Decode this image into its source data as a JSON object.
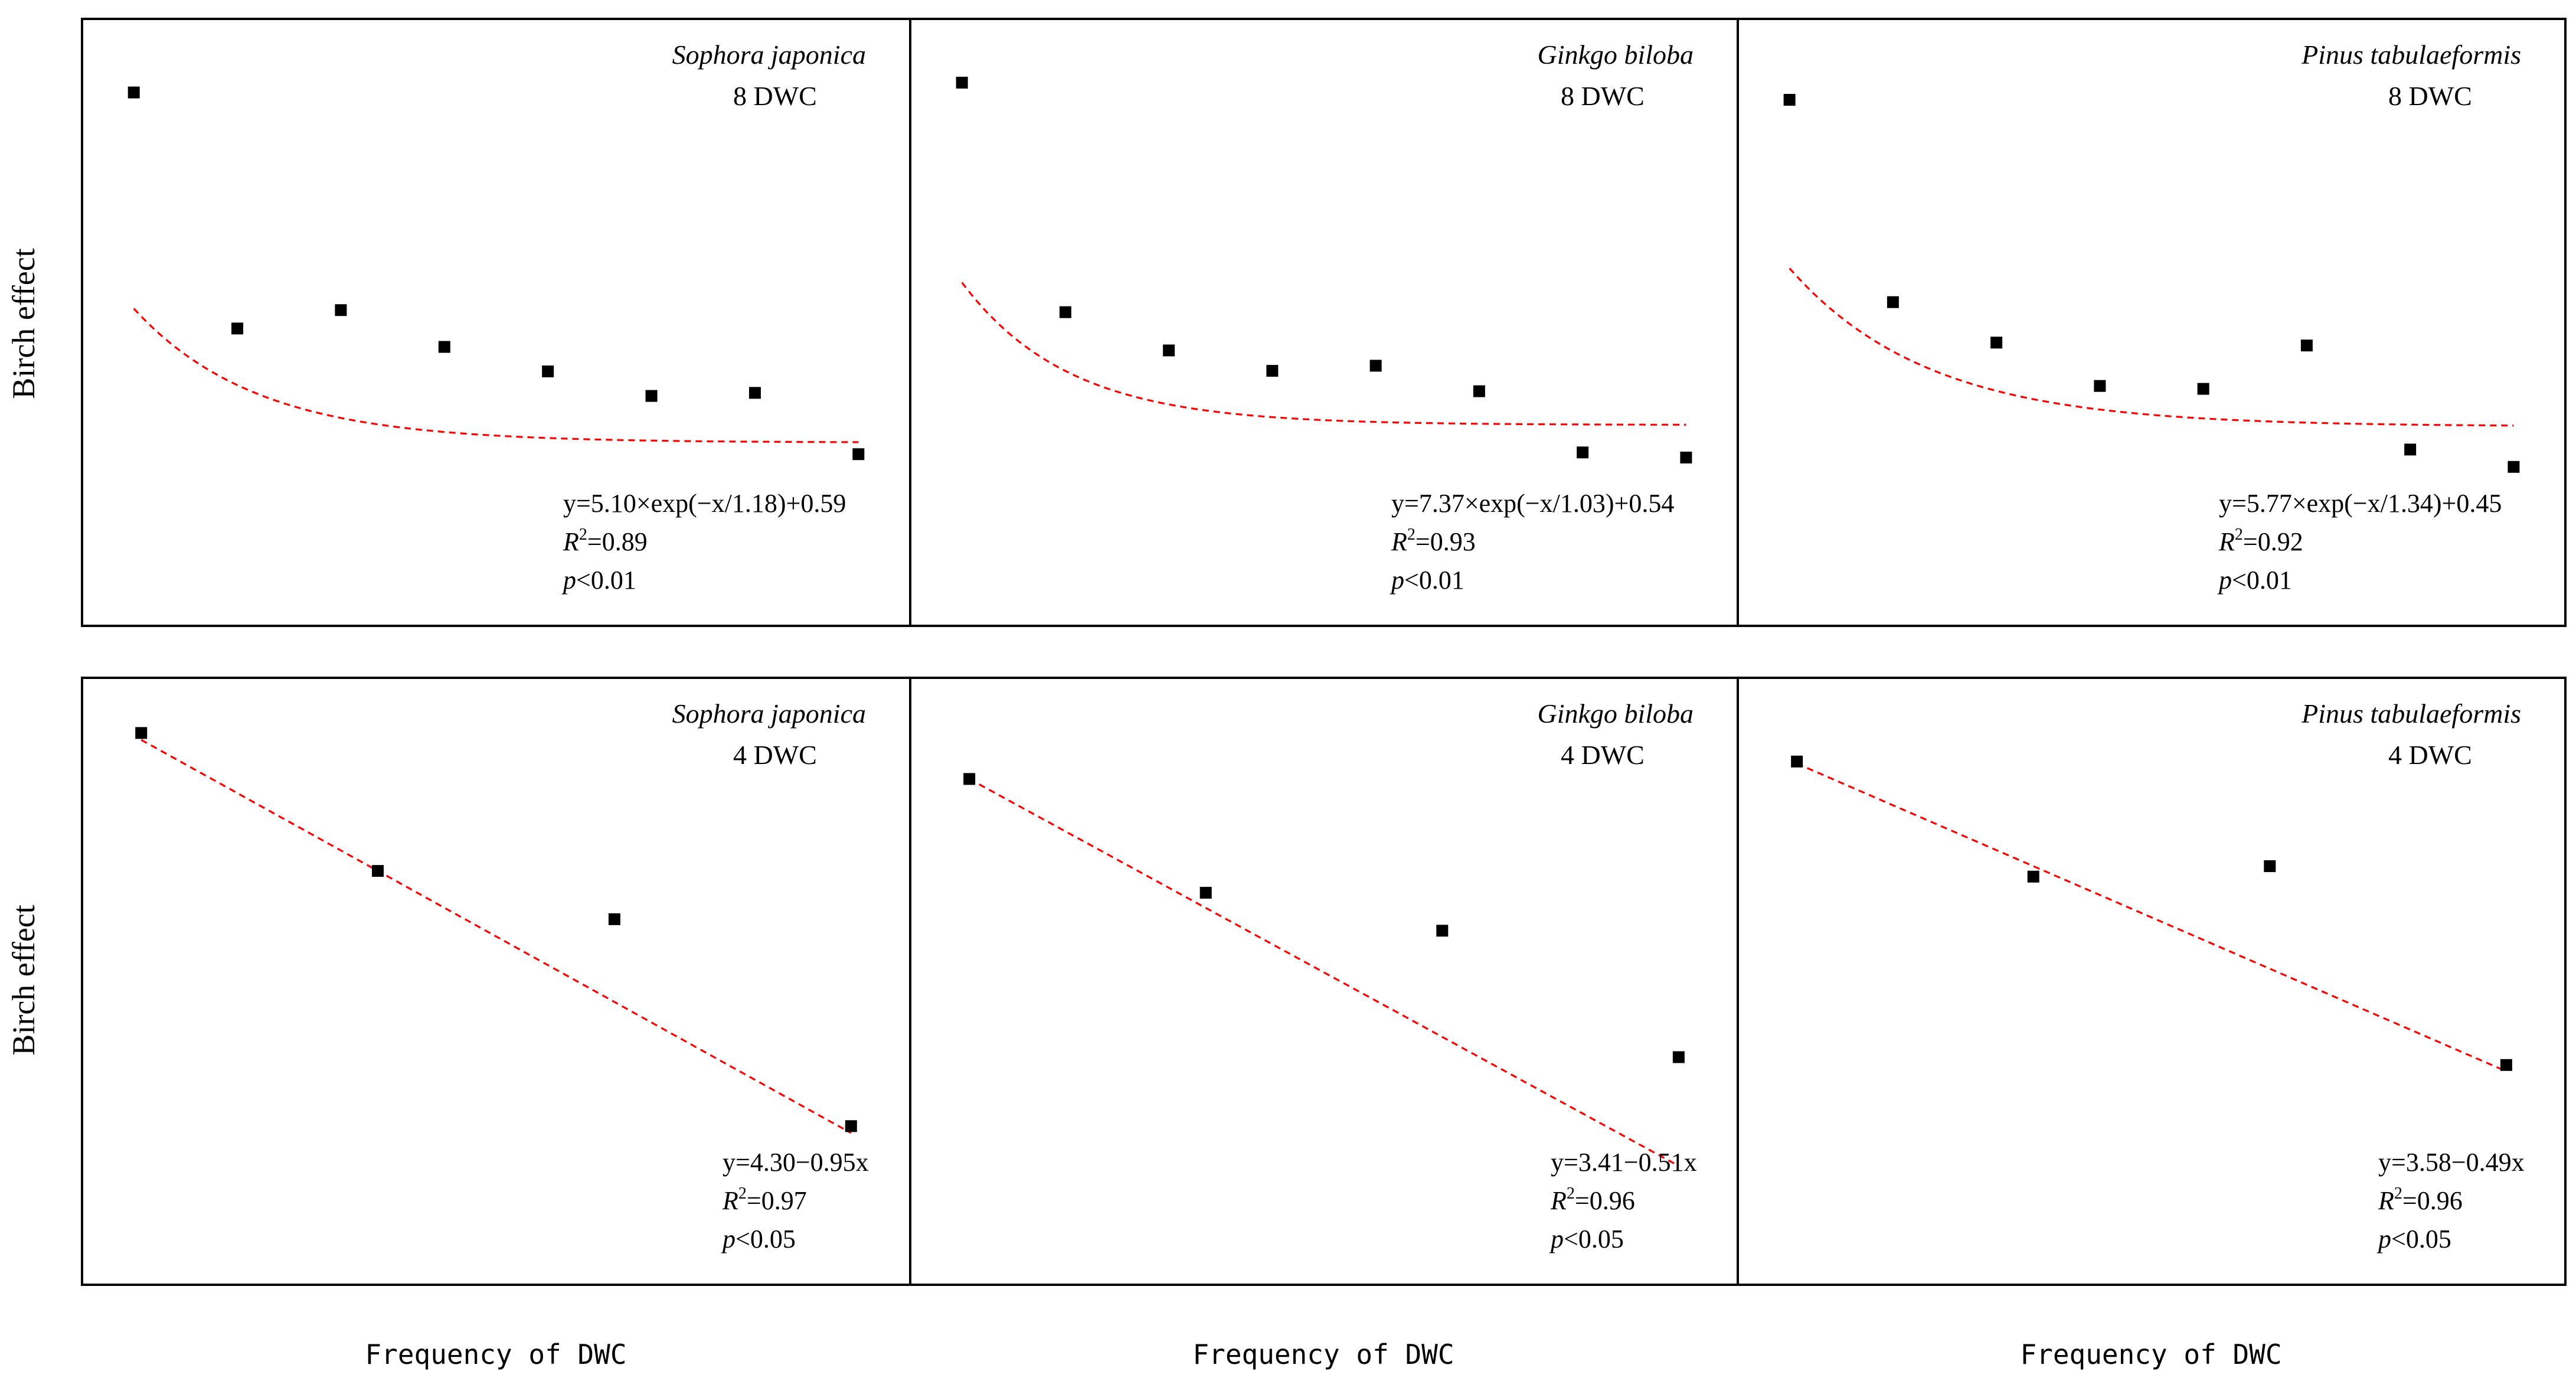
{
  "figure": {
    "ylabel": "Birch effect",
    "xlabel": "Frequency of DWC"
  },
  "colors": {
    "points": "#000000",
    "fit": "#ff0000",
    "frame": "#000000",
    "background": "#ffffff"
  },
  "chart_data": [
    {
      "id": "top-1",
      "type": "scatter",
      "species": "Sophora japonica",
      "treatment": "8 DWC",
      "x": [
        1,
        2,
        3,
        4,
        5,
        6,
        7,
        8
      ],
      "y": [
        6.3,
        2.45,
        2.75,
        2.15,
        1.75,
        1.35,
        1.4,
        0.4
      ],
      "fit": {
        "kind": "exp",
        "A": 5.1,
        "tau": 1.18,
        "c": 0.59
      },
      "equation": "y=5.10×exp(−x/1.18)+0.59",
      "r2_label": "R",
      "r2_sup": "2",
      "r2_value": "=0.89",
      "p_label": "p",
      "p_value": "<0.01",
      "xlim": [
        0.5,
        8.5
      ],
      "ylim": [
        -2.4,
        7.5
      ]
    },
    {
      "id": "top-2",
      "type": "scatter",
      "species": "Ginkgo biloba",
      "treatment": "8 DWC",
      "x": [
        1,
        2,
        3,
        4,
        5,
        6,
        7,
        8
      ],
      "y": [
        7.25,
        2.75,
        2.0,
        1.6,
        1.7,
        1.2,
        0.0,
        -0.1
      ],
      "fit": {
        "kind": "exp",
        "A": 7.37,
        "tau": 1.03,
        "c": 0.54
      },
      "equation": "y=7.37×exp(−x/1.03)+0.54",
      "r2_label": "R",
      "r2_sup": "2",
      "r2_value": "=0.93",
      "p_label": "p",
      "p_value": "<0.01",
      "xlim": [
        0.5,
        8.5
      ],
      "ylim": [
        -3.4,
        8.5
      ]
    },
    {
      "id": "top-3",
      "type": "scatter",
      "species": "Pinus tabulaeformis",
      "treatment": "8 DWC",
      "x": [
        1,
        2,
        3,
        4,
        5,
        6,
        7,
        8
      ],
      "y": [
        6.1,
        2.6,
        1.9,
        1.15,
        1.1,
        1.85,
        0.05,
        -0.25
      ],
      "fit": {
        "kind": "exp",
        "A": 5.77,
        "tau": 1.34,
        "c": 0.45
      },
      "equation": "y=5.77×exp(−x/1.34)+0.45",
      "r2_label": "R",
      "r2_sup": "2",
      "r2_value": "=0.92",
      "p_label": "p",
      "p_value": "<0.01",
      "xlim": [
        0.5,
        8.5
      ],
      "ylim": [
        -3.0,
        7.5
      ]
    },
    {
      "id": "bottom-1",
      "type": "scatter",
      "species": "Sophora japonica",
      "treatment": "4 DWC",
      "x": [
        1,
        2,
        3,
        4
      ],
      "y": [
        3.4,
        2.4,
        2.05,
        0.55
      ],
      "fit": {
        "kind": "linear",
        "a": 4.3,
        "b": -0.95
      },
      "equation": "y=4.30−0.95x",
      "r2_label": "R",
      "r2_sup": "2",
      "r2_value": "=0.97",
      "p_label": "p",
      "p_value": "<0.05",
      "xlim": [
        0.75,
        4.25
      ],
      "ylim": [
        -0.6,
        3.8
      ]
    },
    {
      "id": "bottom-2",
      "type": "scatter",
      "species": "Ginkgo biloba",
      "treatment": "4 DWC",
      "x": [
        1,
        2,
        3,
        4
      ],
      "y": [
        2.9,
        2.45,
        2.3,
        1.8
      ],
      "fit": {
        "kind": "linear",
        "a": 3.41,
        "b": -0.51
      },
      "equation": "y=3.41−0.51x",
      "r2_label": "R",
      "r2_sup": "2",
      "r2_value": "=0.96",
      "p_label": "p",
      "p_value": "<0.05",
      "xlim": [
        0.75,
        4.25
      ],
      "ylim": [
        0.9,
        3.3
      ]
    },
    {
      "id": "bottom-3",
      "type": "scatter",
      "species": "Pinus tabulaeformis",
      "treatment": "4 DWC",
      "x": [
        1,
        2,
        3,
        4
      ],
      "y": [
        3.1,
        2.55,
        2.6,
        1.65
      ],
      "fit": {
        "kind": "linear",
        "a": 3.58,
        "b": -0.49
      },
      "equation": "y=3.58−0.49x",
      "r2_label": "R",
      "r2_sup": "2",
      "r2_value": "=0.96",
      "p_label": "p",
      "p_value": "<0.05",
      "xlim": [
        0.75,
        4.25
      ],
      "ylim": [
        0.6,
        3.5
      ]
    }
  ]
}
